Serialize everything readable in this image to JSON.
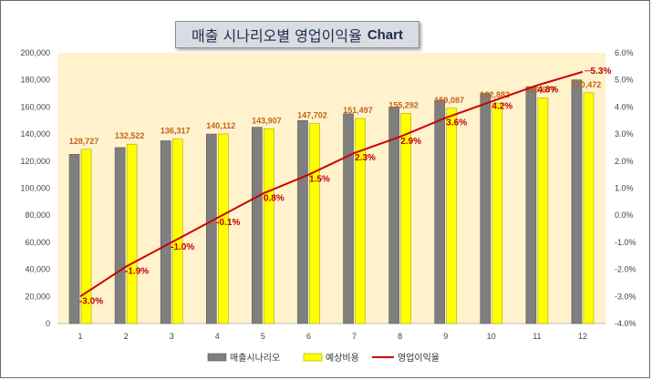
{
  "title": {
    "korean": "매출 시나리오별 영업이익율",
    "english": "Chart"
  },
  "chart_data": {
    "type": "bar",
    "categories": [
      "1",
      "2",
      "3",
      "4",
      "5",
      "6",
      "7",
      "8",
      "9",
      "10",
      "11",
      "12"
    ],
    "series": [
      {
        "name": "매출시나리오",
        "type": "bar",
        "axis": "left",
        "color": "#7f7f7f",
        "values": [
          125000,
          130000,
          135000,
          140000,
          145000,
          150000,
          155000,
          160000,
          165000,
          170000,
          175000,
          180000
        ]
      },
      {
        "name": "예상비용",
        "type": "bar",
        "axis": "left",
        "color": "#ffff00",
        "values": [
          128727,
          132522,
          136317,
          140112,
          143907,
          147702,
          151497,
          155292,
          159087,
          162882,
          166677,
          170472
        ],
        "labels": [
          "128,727",
          "132,522",
          "136,317",
          "140,112",
          "143,907",
          "147,702",
          "151,497",
          "155,292",
          "159,087",
          "162,882",
          "166,677",
          "170,472"
        ]
      },
      {
        "name": "영업이익율",
        "type": "line",
        "axis": "right",
        "color": "#cc0000",
        "values": [
          -3.0,
          -1.9,
          -1.0,
          -0.1,
          0.8,
          1.5,
          2.3,
          2.9,
          3.6,
          4.2,
          4.8,
          5.3
        ],
        "labels": [
          "-3.0%",
          "-1.9%",
          "-1.0%",
          "-0.1%",
          "0.8%",
          "1.5%",
          "2.3%",
          "2.9%",
          "3.6%",
          "4.2%",
          "4.8%",
          "5.3%"
        ]
      }
    ],
    "y_left": {
      "min": 0,
      "max": 200000,
      "step": 20000,
      "ticks": [
        "0",
        "20,000",
        "40,000",
        "60,000",
        "80,000",
        "100,000",
        "120,000",
        "140,000",
        "160,000",
        "180,000",
        "200,000"
      ]
    },
    "y_right": {
      "min": -4.0,
      "max": 6.0,
      "step": 1.0,
      "ticks": [
        "-4.0%",
        "-3.0%",
        "-2.0%",
        "-1.0%",
        "0.0%",
        "1.0%",
        "2.0%",
        "3.0%",
        "4.0%",
        "5.0%",
        "6.0%"
      ]
    },
    "grid": false,
    "legend_position": "bottom",
    "plot_background": "#fff2cc"
  }
}
